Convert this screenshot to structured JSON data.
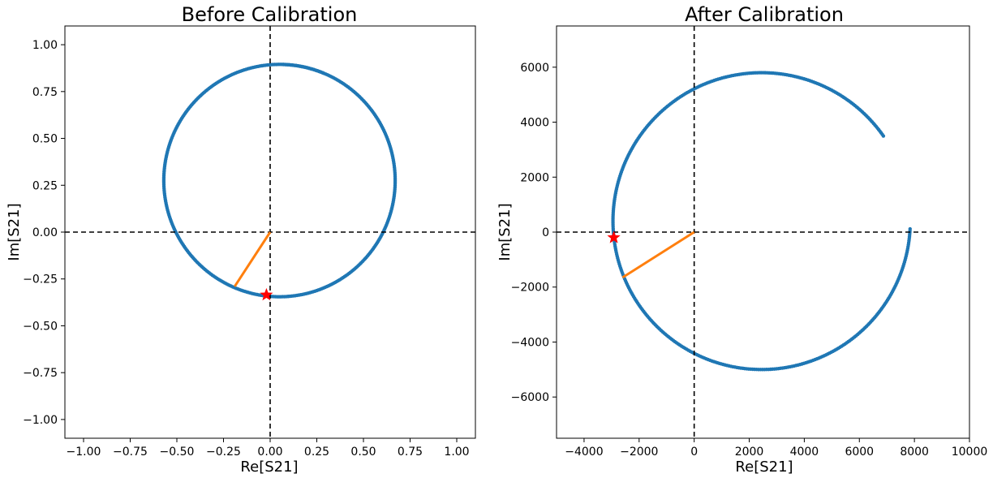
{
  "colors": {
    "scatter": "#1f77b4",
    "line": "#ff7f0e",
    "marker": "#ff0000",
    "reference": "#000000"
  },
  "chart_data": [
    {
      "type": "scatter",
      "title": "Before Calibration",
      "xlabel": "Re[S21]",
      "ylabel": "Im[S21]",
      "xlim": [
        -1.1,
        1.1
      ],
      "ylim": [
        -1.1,
        1.1
      ],
      "xticks": [
        -1.0,
        -0.75,
        -0.5,
        -0.25,
        0.0,
        0.25,
        0.5,
        0.75,
        1.0
      ],
      "xtick_labels": [
        "−1.00",
        "−0.75",
        "−0.50",
        "−0.25",
        "0.00",
        "0.25",
        "0.50",
        "0.75",
        "1.00"
      ],
      "yticks": [
        1.0,
        0.75,
        0.5,
        0.25,
        0.0,
        -0.25,
        -0.5,
        -0.75,
        -1.0
      ],
      "ytick_labels": [
        "1.00",
        "0.75",
        "0.50",
        "0.25",
        "0.00",
        "−0.25",
        "−0.50",
        "−0.75",
        "−1.00"
      ],
      "circle": {
        "center": [
          0.05,
          0.275
        ],
        "radius": 0.62,
        "start_deg": 68,
        "end_deg": 448,
        "gap": [
          [
            0.03,
            0.895
          ],
          [
            0.28,
            0.85
          ]
        ]
      },
      "reference_lines": {
        "x": 0,
        "y": 0
      },
      "line_segment": [
        [
          0.0,
          0.0
        ],
        [
          -0.19,
          -0.29
        ]
      ],
      "star": [
        -0.02,
        -0.335
      ],
      "grid": false
    },
    {
      "type": "scatter",
      "title": "After Calibration",
      "xlabel": "Re[S21]",
      "ylabel": "Im[S21]",
      "xlim": [
        -5000,
        10000
      ],
      "ylim": [
        -7500,
        7500
      ],
      "xticks": [
        -4000,
        -2000,
        0,
        2000,
        4000,
        6000,
        8000,
        10000
      ],
      "xtick_labels": [
        "−4000",
        "−2000",
        "0",
        "2000",
        "4000",
        "6000",
        "8000",
        "10000"
      ],
      "yticks": [
        6000,
        4000,
        2000,
        0,
        -2000,
        -4000,
        -6000
      ],
      "ytick_labels": [
        "6000",
        "4000",
        "2000",
        "0",
        "−2000",
        "−4000",
        "−6000"
      ],
      "circle": {
        "center": [
          2450,
          400
        ],
        "radius": 5400,
        "start_deg": 35,
        "end_deg": 357,
        "gap": [
          [
            7450,
            2450
          ],
          [
            7850,
            300
          ]
        ]
      },
      "reference_lines": {
        "x": 0,
        "y": 0
      },
      "line_segment": [
        [
          0,
          0
        ],
        [
          -2600,
          -1650
        ]
      ],
      "star": [
        -2920,
        -200
      ],
      "grid": false
    }
  ]
}
